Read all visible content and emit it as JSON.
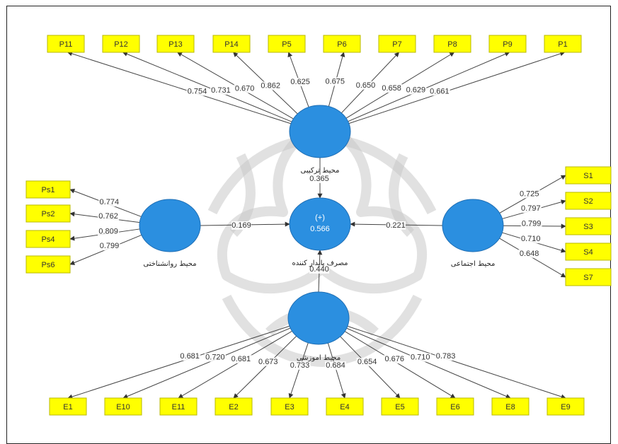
{
  "colors": {
    "latent": "#2b8fe0",
    "indicator": "#ffff00",
    "line": "#444444"
  },
  "latents": [
    {
      "id": "L_top",
      "label": "محیط ترکیبی",
      "r2": ""
    },
    {
      "id": "L_left",
      "label": "محیط روانشناختی",
      "r2": ""
    },
    {
      "id": "L_center",
      "label": "مصرف پایدار کننده",
      "r2": "(+)\n0.566"
    },
    {
      "id": "L_right",
      "label": "محیط اجتماعی",
      "r2": ""
    },
    {
      "id": "L_bottom",
      "label": "محیط اموزشی",
      "r2": ""
    }
  ],
  "structural_paths": [
    {
      "from": "L_top",
      "to": "L_center",
      "value": "0.365"
    },
    {
      "from": "L_left",
      "to": "L_center",
      "value": "0.169"
    },
    {
      "from": "L_right",
      "to": "L_center",
      "value": "0.221"
    },
    {
      "from": "L_bottom",
      "to": "L_center",
      "value": "0.440"
    }
  ],
  "indicator_groups": [
    {
      "latent": "L_top",
      "side": "top",
      "items": [
        {
          "label": "P11",
          "loading": "0.754"
        },
        {
          "label": "P12",
          "loading": "0.731"
        },
        {
          "label": "P13",
          "loading": "0.670"
        },
        {
          "label": "P14",
          "loading": "0.862"
        },
        {
          "label": "P5",
          "loading": "0.625"
        },
        {
          "label": "P6",
          "loading": "0.675"
        },
        {
          "label": "P7",
          "loading": "0.650"
        },
        {
          "label": "P8",
          "loading": "0.658"
        },
        {
          "label": "P9",
          "loading": "0.629"
        },
        {
          "label": "P1",
          "loading": "0.661"
        }
      ]
    },
    {
      "latent": "L_left",
      "side": "left",
      "items": [
        {
          "label": "Ps1",
          "loading": "0.774"
        },
        {
          "label": "Ps2",
          "loading": "0.762"
        },
        {
          "label": "Ps4",
          "loading": "0.809"
        },
        {
          "label": "Ps6",
          "loading": "0.799"
        }
      ]
    },
    {
      "latent": "L_right",
      "side": "right",
      "items": [
        {
          "label": "S1",
          "loading": "0.725"
        },
        {
          "label": "S2",
          "loading": "0.797"
        },
        {
          "label": "S3",
          "loading": "0.799"
        },
        {
          "label": "S4",
          "loading": "0.710"
        },
        {
          "label": "S7",
          "loading": "0.648"
        }
      ]
    },
    {
      "latent": "L_bottom",
      "side": "bottom",
      "items": [
        {
          "label": "E1",
          "loading": "0.681"
        },
        {
          "label": "E10",
          "loading": "0.720"
        },
        {
          "label": "E11",
          "loading": "0.681"
        },
        {
          "label": "E2",
          "loading": "0.673"
        },
        {
          "label": "E3",
          "loading": "0.733"
        },
        {
          "label": "E4",
          "loading": "0.684"
        },
        {
          "label": "E5",
          "loading": "0.654"
        },
        {
          "label": "E6",
          "loading": "0.676"
        },
        {
          "label": "E8",
          "loading": "0.710"
        },
        {
          "label": "E9",
          "loading": "0.783"
        }
      ]
    }
  ]
}
